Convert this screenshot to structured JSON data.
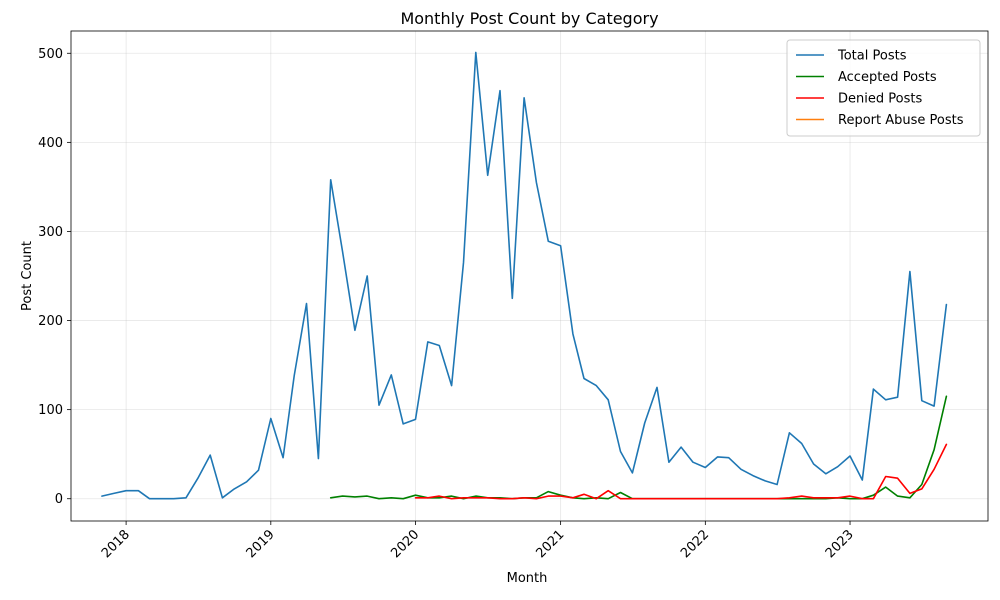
{
  "chart_data": {
    "type": "line",
    "title": "Monthly Post Count by Category",
    "xlabel": "Month",
    "ylabel": "Post Count",
    "grid": true,
    "legend_position": "top-right",
    "x_tick_labels": [
      "2018",
      "2019",
      "2020",
      "2021",
      "2022",
      "2023"
    ],
    "x_tick_dates": [
      "2018-01-01",
      "2019-01-01",
      "2020-01-01",
      "2021-01-01",
      "2022-01-01",
      "2023-01-01"
    ],
    "y_ticks": [
      0,
      100,
      200,
      300,
      400,
      500
    ],
    "xlim": [
      "2017-08-15",
      "2023-12-15"
    ],
    "ylim": [
      -25,
      525
    ],
    "series": [
      {
        "name": "Total Posts",
        "color": "#1f77b4",
        "x": [
          "2017-11",
          "2017-12",
          "2018-01",
          "2018-02",
          "2018-03",
          "2018-04",
          "2018-05",
          "2018-06",
          "2018-07",
          "2018-08",
          "2018-09",
          "2018-10",
          "2018-11",
          "2018-12",
          "2019-01",
          "2019-02",
          "2019-03",
          "2019-04",
          "2019-05",
          "2019-06",
          "2019-07",
          "2019-08",
          "2019-09",
          "2019-10",
          "2019-11",
          "2019-12",
          "2020-01",
          "2020-02",
          "2020-03",
          "2020-04",
          "2020-05",
          "2020-06",
          "2020-07",
          "2020-08",
          "2020-09",
          "2020-10",
          "2020-11",
          "2020-12",
          "2021-01",
          "2021-02",
          "2021-03",
          "2021-04",
          "2021-05",
          "2021-06",
          "2021-07",
          "2021-08",
          "2021-09",
          "2021-10",
          "2021-11",
          "2021-12",
          "2022-01",
          "2022-02",
          "2022-03",
          "2022-04",
          "2022-05",
          "2022-06",
          "2022-07",
          "2022-08",
          "2022-09",
          "2022-10",
          "2022-11",
          "2022-12",
          "2023-01",
          "2023-02",
          "2023-03",
          "2023-04",
          "2023-05",
          "2023-06",
          "2023-07",
          "2023-08",
          "2023-09"
        ],
        "values": [
          3,
          6,
          9,
          9,
          0,
          0,
          0,
          1,
          23,
          49,
          1,
          11,
          19,
          32,
          90,
          46,
          138,
          219,
          45,
          358,
          277,
          189,
          250,
          105,
          139,
          84,
          89,
          176,
          172,
          127,
          265,
          501,
          363,
          458,
          225,
          450,
          355,
          289,
          284,
          185,
          135,
          127,
          111,
          53,
          29,
          85,
          125,
          41,
          58,
          41,
          35,
          47,
          46,
          33,
          26,
          20,
          16,
          74,
          62,
          39,
          28,
          36,
          48,
          21,
          123,
          111,
          114,
          255,
          110,
          104,
          218
        ]
      },
      {
        "name": "Accepted Posts",
        "color": "#008000",
        "x": [
          "2019-06",
          "2019-07",
          "2019-08",
          "2019-09",
          "2019-10",
          "2019-11",
          "2019-12",
          "2020-01",
          "2020-02",
          "2020-03",
          "2020-04",
          "2020-05",
          "2020-06",
          "2020-07",
          "2020-08",
          "2020-09",
          "2020-10",
          "2020-11",
          "2020-12",
          "2021-01",
          "2021-02",
          "2021-03",
          "2021-04",
          "2021-05",
          "2021-06",
          "2021-07",
          "2021-08",
          "2021-09",
          "2021-10",
          "2021-11",
          "2021-12",
          "2022-01",
          "2022-02",
          "2022-03",
          "2022-04",
          "2022-05",
          "2022-06",
          "2022-07",
          "2022-08",
          "2022-09",
          "2022-10",
          "2022-11",
          "2022-12",
          "2023-01",
          "2023-02",
          "2023-03",
          "2023-04",
          "2023-05",
          "2023-06",
          "2023-07",
          "2023-08",
          "2023-09"
        ],
        "values": [
          1,
          3,
          2,
          3,
          0,
          1,
          0,
          4,
          1,
          1,
          3,
          0,
          3,
          1,
          1,
          0,
          1,
          1,
          8,
          4,
          1,
          0,
          1,
          0,
          7,
          0,
          0,
          0,
          0,
          0,
          0,
          0,
          0,
          0,
          0,
          0,
          0,
          0,
          0,
          0,
          0,
          0,
          1,
          0,
          0,
          4,
          13,
          3,
          1,
          16,
          55,
          115
        ]
      },
      {
        "name": "Denied Posts",
        "color": "#ff0000",
        "x": [
          "2020-01",
          "2020-02",
          "2020-03",
          "2020-04",
          "2020-05",
          "2020-06",
          "2020-07",
          "2020-08",
          "2020-09",
          "2020-10",
          "2020-11",
          "2020-12",
          "2021-01",
          "2021-02",
          "2021-03",
          "2021-04",
          "2021-05",
          "2021-06",
          "2021-07",
          "2021-08",
          "2021-09",
          "2021-10",
          "2021-11",
          "2021-12",
          "2022-01",
          "2022-02",
          "2022-03",
          "2022-04",
          "2022-05",
          "2022-06",
          "2022-07",
          "2022-08",
          "2022-09",
          "2022-10",
          "2022-11",
          "2022-12",
          "2023-01",
          "2023-02",
          "2023-03",
          "2023-04",
          "2023-05",
          "2023-06",
          "2023-07",
          "2023-08",
          "2023-09"
        ],
        "values": [
          1,
          1,
          3,
          0,
          1,
          1,
          1,
          0,
          0,
          1,
          0,
          3,
          3,
          1,
          5,
          0,
          9,
          0,
          0,
          0,
          0,
          0,
          0,
          0,
          0,
          0,
          0,
          0,
          0,
          0,
          0,
          1,
          3,
          1,
          1,
          1,
          3,
          0,
          0,
          25,
          23,
          6,
          11,
          33,
          61
        ]
      },
      {
        "name": "Report Abuse Posts",
        "color": "#ff7f0e",
        "x": [],
        "values": []
      }
    ]
  }
}
